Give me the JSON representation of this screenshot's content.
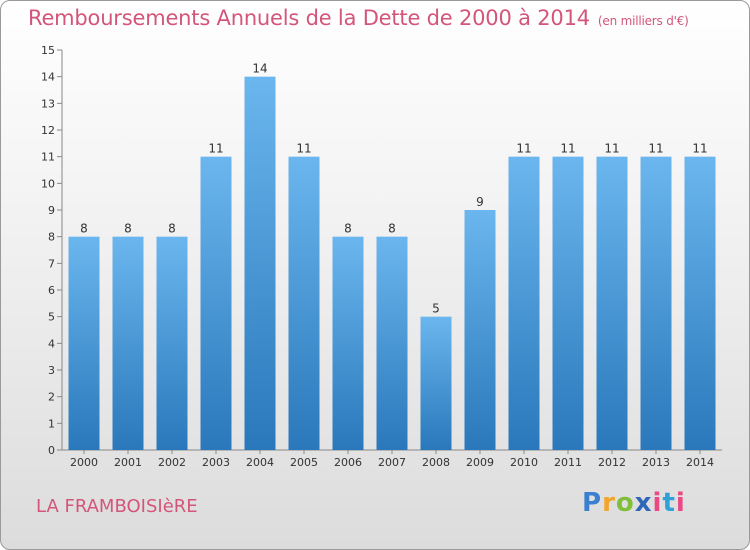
{
  "title": "Remboursements Annuels de la Dette de 2000 à 2014",
  "unit": "(en milliers d'€)",
  "city": "LA FRAMBOISIèRE",
  "logo": "Proxiti",
  "colors": {
    "title": "#d4557a",
    "bar_top": "#6bb6ee",
    "bar_bottom": "#2a78bb"
  },
  "chart_data": {
    "type": "bar",
    "title": "Remboursements Annuels de la Dette de 2000 à 2014",
    "xlabel": "",
    "ylabel": "",
    "categories": [
      "2000",
      "2001",
      "2002",
      "2003",
      "2004",
      "2005",
      "2006",
      "2007",
      "2008",
      "2009",
      "2010",
      "2011",
      "2012",
      "2013",
      "2014"
    ],
    "values": [
      8,
      8,
      8,
      11,
      14,
      11,
      8,
      8,
      5,
      9,
      11,
      11,
      11,
      11,
      11
    ],
    "ylim": [
      0,
      15
    ],
    "yticks": [
      0,
      1,
      2,
      3,
      4,
      5,
      6,
      7,
      8,
      9,
      10,
      11,
      12,
      13,
      14,
      15
    ],
    "grid": false,
    "legend": "none"
  }
}
